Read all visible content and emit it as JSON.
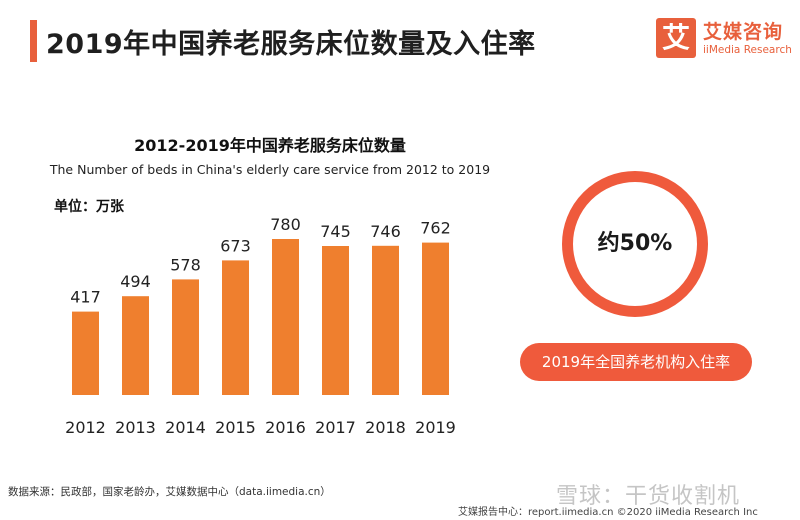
{
  "header": {
    "title": "2019年中国养老服务床位数量及入住率"
  },
  "logo": {
    "mark": "艾",
    "name_cn": "艾媒咨询",
    "name_en": "iiMedia Research",
    "color": "#e8603c"
  },
  "chart_data": {
    "type": "bar",
    "title": "2012-2019年中国养老服务床位数量",
    "subtitle": "The Number of beds in China's elderly care service from 2012 to 2019",
    "unit": "单位：万张",
    "categories": [
      "2012",
      "2013",
      "2014",
      "2015",
      "2016",
      "2017",
      "2018",
      "2019"
    ],
    "values": [
      417,
      494,
      578,
      673,
      780,
      745,
      746,
      762
    ],
    "ylim": [
      0,
      800
    ],
    "color": "#ef7f2e",
    "grid": false
  },
  "occupancy": {
    "value": "约50%",
    "label": "2019年全国养老机构入住率",
    "color": "#ef5a3c"
  },
  "footer": {
    "source": "数据来源：民政部，国家老龄办，艾媒数据中心（data.iimedia.cn）",
    "report": "艾媒报告中心：report.iimedia.cn  ©2020  iiMedia Research  Inc"
  },
  "watermark": "雪球：干货收割机"
}
